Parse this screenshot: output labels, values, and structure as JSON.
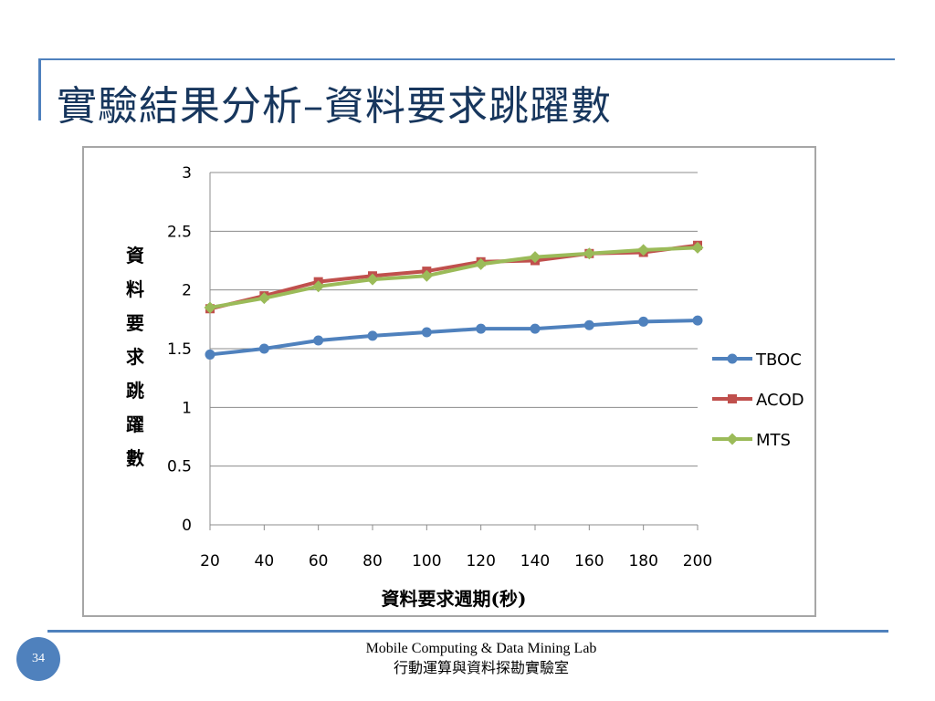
{
  "slide": {
    "title": "實驗結果分析–資料要求跳躍數",
    "page_number": "34",
    "footer_line1": "Mobile Computing & Data Mining Lab",
    "footer_line2": "行動運算與資料探勘實驗室"
  },
  "colors": {
    "accent": "#4f81bd",
    "title": "#17365d",
    "grid": "#8c8c8c",
    "frame": "#a6a6a6"
  },
  "chart_data": {
    "type": "line",
    "title": "",
    "xlabel": "資料要求週期(秒)",
    "ylabel": "資料要求跳躍數",
    "x": [
      20,
      40,
      60,
      80,
      100,
      120,
      140,
      160,
      180,
      200
    ],
    "ylim": [
      0,
      3
    ],
    "yticks": [
      "0",
      "0.5",
      "1",
      "1.5",
      "2",
      "2.5",
      "3"
    ],
    "xticks": [
      "20",
      "40",
      "60",
      "80",
      "100",
      "120",
      "140",
      "160",
      "180",
      "200"
    ],
    "grid": "horizontal",
    "legend_position": "right",
    "series": [
      {
        "name": "TBOC",
        "color": "#4f81bd",
        "marker": "circle",
        "values": [
          1.45,
          1.5,
          1.57,
          1.61,
          1.64,
          1.67,
          1.67,
          1.7,
          1.73,
          1.74
        ]
      },
      {
        "name": "ACOD",
        "color": "#c0504d",
        "marker": "square",
        "values": [
          1.84,
          1.95,
          2.07,
          2.12,
          2.16,
          2.24,
          2.25,
          2.31,
          2.32,
          2.38
        ]
      },
      {
        "name": "MTS",
        "color": "#9bbb59",
        "marker": "diamond",
        "values": [
          1.85,
          1.93,
          2.03,
          2.09,
          2.12,
          2.22,
          2.28,
          2.31,
          2.34,
          2.36
        ]
      }
    ]
  }
}
